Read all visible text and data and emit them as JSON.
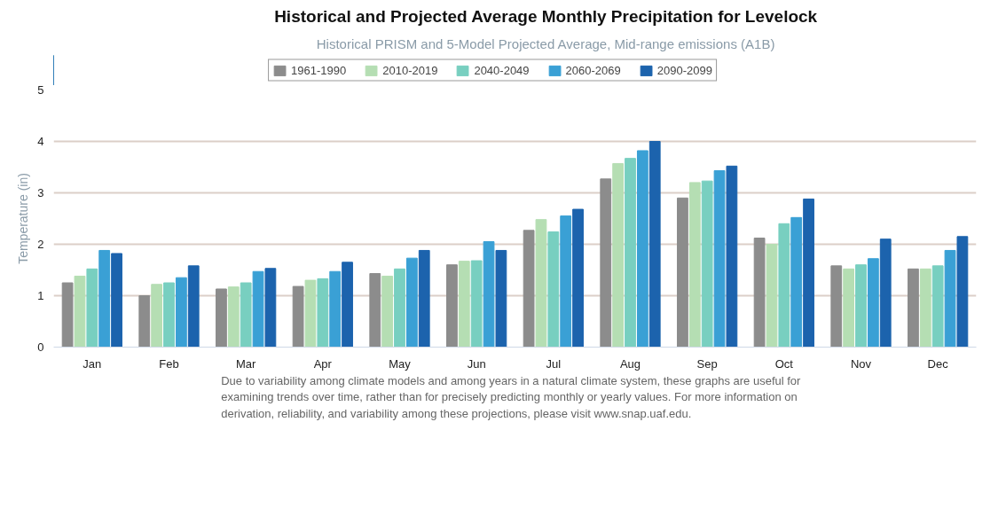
{
  "chart_data": {
    "type": "bar",
    "title": "Historical and Projected Average Monthly Precipitation for Levelock",
    "subtitle": "Historical PRISM and 5-Model Projected Average, Mid-range emissions (A1B)",
    "ylabel": "Temperature (in)",
    "categories": [
      "Jan",
      "Feb",
      "Mar",
      "Apr",
      "May",
      "Jun",
      "Jul",
      "Aug",
      "Sep",
      "Oct",
      "Nov",
      "Dec"
    ],
    "series": [
      {
        "name": "1961-1990",
        "color": "#8c8c8c",
        "values": [
          1.25,
          1.0,
          1.13,
          1.18,
          1.43,
          1.6,
          2.27,
          3.27,
          2.9,
          2.12,
          1.58,
          1.52
        ]
      },
      {
        "name": "2010-2019",
        "color": "#b5deb3",
        "values": [
          1.38,
          1.22,
          1.17,
          1.3,
          1.38,
          1.67,
          2.48,
          3.57,
          3.2,
          2.0,
          1.52,
          1.52
        ]
      },
      {
        "name": "2040-2049",
        "color": "#78cfc0",
        "values": [
          1.52,
          1.25,
          1.25,
          1.33,
          1.52,
          1.68,
          2.24,
          3.67,
          3.23,
          2.4,
          1.6,
          1.58
        ]
      },
      {
        "name": "2060-2069",
        "color": "#3aa0d5",
        "values": [
          1.88,
          1.35,
          1.47,
          1.47,
          1.73,
          2.05,
          2.55,
          3.82,
          3.43,
          2.52,
          1.72,
          1.88
        ]
      },
      {
        "name": "2090-2099",
        "color": "#1c63ad",
        "values": [
          1.82,
          1.58,
          1.53,
          1.65,
          1.88,
          1.88,
          2.68,
          4.0,
          3.52,
          2.88,
          2.1,
          2.15
        ]
      }
    ],
    "ylim": [
      0,
      5
    ],
    "yticks": [
      0,
      1,
      2,
      3,
      4,
      5
    ],
    "grid": "y",
    "legend": "top",
    "annotations": [
      "Due to variability among climate models and among years in a natural climate system, these graphs are useful for examining trends over time, rather than for precisely predicting monthly or yearly values. For more information on derivation, reliability, and variability among these projections, please visit www.snap.uaf.edu."
    ]
  }
}
